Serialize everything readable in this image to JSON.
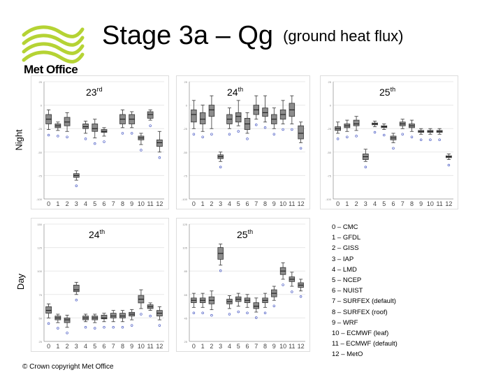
{
  "header": {
    "title": "Stage 3a – Qg",
    "title_paren": "(ground heat flux)",
    "logo_text": "Met Office"
  },
  "row_labels": {
    "night": "Night",
    "day": "Day"
  },
  "colors": {
    "box": "#8c8c8c",
    "box_edge": "#333333",
    "outlier": "#4a5bc4",
    "logo_green": "#b5d334",
    "grid": "#e8e8e8"
  },
  "legend": [
    "0 – CMC",
    "1 – GFDL",
    "2 – GISS",
    "3 – IAP",
    "4 – LMD",
    "5 – NCEP",
    "6 – NUIST",
    "7 – SURFEX (default)",
    "8 – SURFEX (roof)",
    "9 – WRF",
    "10 – ECMWF (leaf)",
    "11 – ECMWF (default)",
    "12 – MetO"
  ],
  "copyright": "© Crown copyright   Met Office",
  "chart_data": [
    {
      "type": "box",
      "title": "23rd",
      "title_main": "23",
      "title_sup": "rd",
      "row": "Night",
      "categories": [
        "0",
        "1",
        "2",
        "3",
        "4",
        "5",
        "6",
        "7",
        "8",
        "9",
        "10",
        "11",
        "12"
      ],
      "ylim": [
        -100,
        25
      ],
      "medians": [
        -15,
        -22,
        -18,
        -75,
        -23,
        -25,
        -28,
        null,
        -15,
        -15,
        -35,
        -10,
        -40
      ],
      "q1": [
        -20,
        -24,
        -22,
        -77,
        -25,
        -28,
        -29,
        null,
        -20,
        -20,
        -37,
        -14,
        -44
      ],
      "q3": [
        -10,
        -20,
        -13,
        -73,
        -20,
        -20,
        -26,
        null,
        -10,
        -10,
        -33,
        -7,
        -37
      ],
      "whisker_low": [
        -26,
        -27,
        -28,
        -80,
        -30,
        -35,
        -33,
        null,
        -24,
        -24,
        -42,
        -16,
        -50
      ],
      "whisker_high": [
        -5,
        -18,
        -8,
        -70,
        -17,
        -15,
        -24,
        null,
        -5,
        -7,
        -30,
        -5,
        -28
      ]
    },
    {
      "type": "box",
      "title": "24th",
      "title_main": "24",
      "title_sup": "th",
      "row": "Night",
      "categories": [
        "0",
        "1",
        "2",
        "3",
        "4",
        "5",
        "6",
        "7",
        "8",
        "9",
        "10",
        "11",
        "12"
      ],
      "ylim": [
        -100,
        25
      ],
      "medians": [
        -10,
        -15,
        -5,
        -55,
        -15,
        -12,
        -20,
        -5,
        -8,
        -15,
        -10,
        -5,
        -30
      ],
      "q1": [
        -18,
        -20,
        -12,
        -57,
        -20,
        -18,
        -26,
        -10,
        -12,
        -20,
        -15,
        -12,
        -36
      ],
      "q3": [
        -5,
        -8,
        0,
        -53,
        -10,
        -8,
        -14,
        0,
        -3,
        -10,
        -5,
        2,
        -22
      ],
      "whisker_low": [
        -25,
        -28,
        -25,
        -60,
        -25,
        -22,
        -30,
        -15,
        -18,
        -25,
        -20,
        -20,
        -40
      ],
      "whisker_high": [
        5,
        0,
        10,
        -50,
        -3,
        5,
        -8,
        10,
        10,
        -3,
        5,
        10,
        -18
      ]
    },
    {
      "type": "box",
      "title": "25th",
      "title_main": "25",
      "title_sup": "th",
      "row": "Night",
      "categories": [
        "0",
        "1",
        "2",
        "3",
        "4",
        "5",
        "6",
        "7",
        "8",
        "9",
        "10",
        "11",
        "12"
      ],
      "ylim": [
        -100,
        25
      ],
      "medians": [
        -25,
        -22,
        -20,
        -55,
        -20,
        -23,
        -35,
        -20,
        -22,
        -28,
        -28,
        -28,
        -55
      ],
      "q1": [
        -27,
        -24,
        -22,
        -58,
        -21,
        -24,
        -37,
        -22,
        -24,
        -29,
        -29,
        -29,
        -56
      ],
      "q3": [
        -23,
        -20,
        -16,
        -52,
        -19,
        -22,
        -33,
        -18,
        -20,
        -27,
        -27,
        -27,
        -54
      ],
      "whisker_low": [
        -30,
        -28,
        -27,
        -60,
        -23,
        -26,
        -40,
        -25,
        -28,
        -31,
        -31,
        -31,
        -58
      ],
      "whisker_high": [
        -18,
        -16,
        -12,
        -47,
        -17,
        -20,
        -30,
        -15,
        -16,
        -25,
        -25,
        -25,
        -52
      ]
    },
    {
      "type": "box",
      "title": "24th",
      "title_main": "24",
      "title_sup": "th",
      "row": "Day",
      "categories": [
        "0",
        "1",
        "2",
        "3",
        "4",
        "5",
        "6",
        "7",
        "8",
        "9",
        "10",
        "11",
        "12"
      ],
      "ylim": [
        25,
        150
      ],
      "medians": [
        58,
        50,
        48,
        80,
        50,
        50,
        50,
        52,
        52,
        54,
        70,
        62,
        55
      ],
      "q1": [
        55,
        48,
        45,
        78,
        48,
        48,
        49,
        50,
        50,
        52,
        66,
        60,
        52
      ],
      "q3": [
        62,
        52,
        50,
        85,
        52,
        52,
        53,
        55,
        55,
        56,
        74,
        64,
        58
      ],
      "whisker_low": [
        50,
        45,
        40,
        75,
        46,
        45,
        46,
        46,
        46,
        48,
        60,
        58,
        48
      ],
      "whisker_high": [
        65,
        54,
        53,
        88,
        54,
        54,
        55,
        58,
        58,
        59,
        80,
        66,
        62
      ]
    },
    {
      "type": "box",
      "title": "25th",
      "title_main": "25",
      "title_sup": "th",
      "row": "Day",
      "categories": [
        "0",
        "1",
        "2",
        "3",
        "4",
        "5",
        "6",
        "7",
        "8",
        "9",
        "10",
        "11",
        "12"
      ],
      "ylim": [
        25,
        125
      ],
      "medians": [
        60,
        60,
        60,
        100,
        59,
        61,
        60,
        55,
        60,
        66,
        85,
        78,
        73
      ],
      "q1": [
        58,
        58,
        57,
        95,
        57,
        59,
        58,
        53,
        58,
        63,
        82,
        76,
        71
      ],
      "q3": [
        62,
        62,
        63,
        105,
        61,
        63,
        62,
        58,
        62,
        69,
        88,
        80,
        75
      ],
      "whisker_low": [
        54,
        54,
        52,
        90,
        53,
        55,
        54,
        50,
        54,
        60,
        78,
        72,
        68
      ],
      "whisker_high": [
        66,
        66,
        68,
        108,
        64,
        66,
        65,
        62,
        66,
        72,
        92,
        84,
        78
      ]
    }
  ]
}
